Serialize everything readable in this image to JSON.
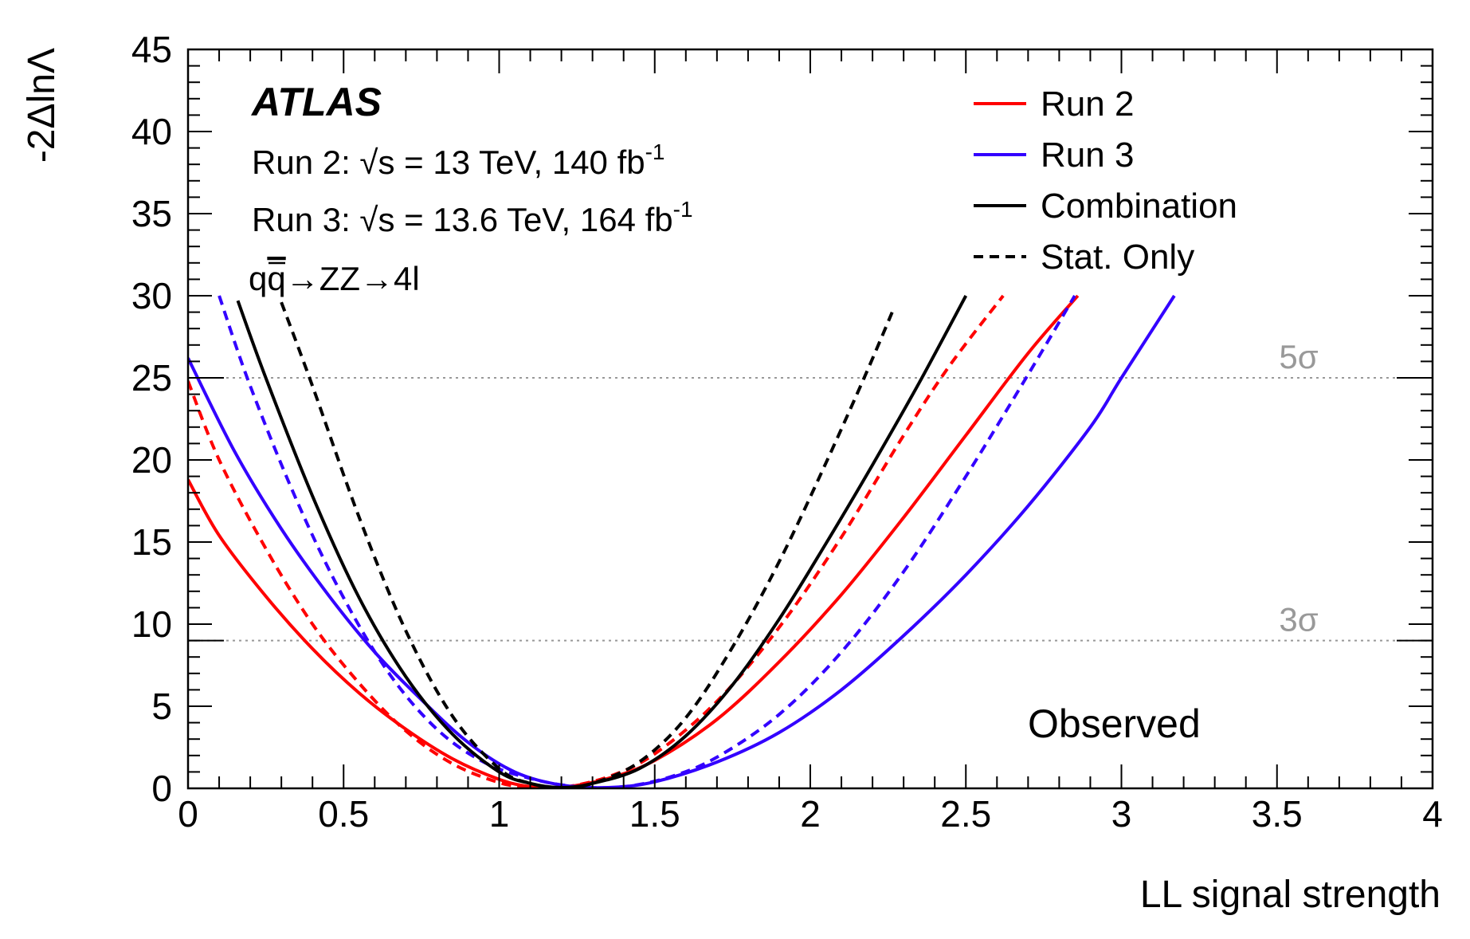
{
  "chart_data": {
    "type": "line",
    "xlabel": "LL signal strength",
    "ylabel": "-2ΔlnΛ",
    "xlim": [
      0,
      4
    ],
    "ylim": [
      0,
      45
    ],
    "x_ticks": [
      "0",
      "0.5",
      "1",
      "1.5",
      "2",
      "2.5",
      "3",
      "3.5",
      "4"
    ],
    "y_ticks": [
      "0",
      "5",
      "10",
      "15",
      "20",
      "25",
      "30",
      "35",
      "40",
      "45"
    ],
    "atlas_label": "ATLAS",
    "info_lines": {
      "run2_prefix": "Run 2: ",
      "run2_suffix": "s = 13 TeV, 140 fb",
      "run3_prefix": "Run 3: ",
      "run3_suffix": "s = 13.6 TeV, 164 fb",
      "lumi_exponent": "-1",
      "process_q": "q",
      "process_qbar": "q",
      "process_rest": "→ZZ→4l"
    },
    "observed_label": "Observed",
    "sigma_lines": [
      {
        "value": 25,
        "label": "5σ"
      },
      {
        "value": 9,
        "label": "3σ"
      }
    ],
    "legend": [
      {
        "label": "Run 2",
        "color": "#ff0000",
        "style": "solid"
      },
      {
        "label": "Run 3",
        "color": "#3300ff",
        "style": "solid"
      },
      {
        "label": "Combination",
        "color": "#000000",
        "style": "solid"
      },
      {
        "label": "Stat. Only",
        "color": "#000000",
        "style": "dashed"
      }
    ],
    "legend_placement": "top-right",
    "series": [
      {
        "color": "#ff0000",
        "style": "solid",
        "x": [
          0,
          0.1,
          0.25,
          0.4,
          0.55,
          0.7,
          0.85,
          1.0,
          1.1,
          1.2,
          1.35,
          1.5,
          1.7,
          1.9,
          2.1,
          2.3,
          2.5,
          2.7,
          2.86
        ],
        "y": [
          18.8,
          15.4,
          11.7,
          8.5,
          5.8,
          3.6,
          1.8,
          0.55,
          0.1,
          0.05,
          0.6,
          1.7,
          4.2,
          7.7,
          11.8,
          16.5,
          21.5,
          26.5,
          30
        ]
      },
      {
        "color": "#ff0000",
        "style": "dashed",
        "x": [
          0,
          0.1,
          0.25,
          0.4,
          0.55,
          0.7,
          0.85,
          1.0,
          1.1,
          1.2,
          1.35,
          1.5,
          1.7,
          1.9,
          2.1,
          2.3,
          2.45,
          2.62
        ],
        "y": [
          24.8,
          20.0,
          14.6,
          10.0,
          6.4,
          3.5,
          1.5,
          0.35,
          0.05,
          0.05,
          0.7,
          2.1,
          5.3,
          9.8,
          15.3,
          21.5,
          25.8,
          30
        ]
      },
      {
        "color": "#3300ff",
        "style": "solid",
        "x": [
          0,
          0.15,
          0.3,
          0.45,
          0.6,
          0.75,
          0.9,
          1.05,
          1.2,
          1.35,
          1.5,
          1.7,
          1.9,
          2.1,
          2.3,
          2.5,
          2.7,
          2.9,
          3.0,
          3.17
        ],
        "y": [
          26.2,
          20.5,
          15.8,
          11.8,
          8.3,
          5.4,
          2.8,
          1.0,
          0.2,
          0.05,
          0.4,
          1.6,
          3.4,
          6.0,
          9.3,
          13.0,
          17.2,
          22.0,
          25.0,
          30
        ]
      },
      {
        "color": "#3300ff",
        "style": "dashed",
        "x": [
          0.1,
          0.2,
          0.35,
          0.5,
          0.65,
          0.8,
          0.95,
          1.1,
          1.25,
          1.4,
          1.55,
          1.7,
          1.9,
          2.1,
          2.3,
          2.5,
          2.7,
          2.85
        ],
        "y": [
          30,
          24.5,
          17.5,
          11.6,
          6.9,
          3.6,
          1.6,
          0.6,
          0.1,
          0.1,
          0.7,
          1.9,
          4.5,
          8.3,
          13.2,
          19.0,
          25.2,
          30
        ]
      },
      {
        "color": "#000000",
        "style": "solid",
        "x": [
          0.16,
          0.25,
          0.4,
          0.55,
          0.7,
          0.85,
          1.0,
          1.1,
          1.2,
          1.3,
          1.45,
          1.6,
          1.75,
          1.9,
          2.05,
          2.2,
          2.35,
          2.5
        ],
        "y": [
          29.7,
          25.0,
          17.8,
          11.6,
          6.8,
          3.3,
          1.0,
          0.3,
          0.05,
          0.3,
          1.2,
          3.2,
          6.3,
          10.3,
          14.9,
          19.7,
          24.7,
          30
        ]
      },
      {
        "color": "#000000",
        "style": "dashed",
        "x": [
          0.3,
          0.4,
          0.55,
          0.7,
          0.85,
          1.0,
          1.1,
          1.2,
          1.3,
          1.45,
          1.6,
          1.75,
          1.9,
          2.05,
          2.18,
          2.27
        ],
        "y": [
          29.6,
          24.5,
          16.5,
          9.6,
          4.4,
          1.2,
          0.3,
          0.05,
          0.3,
          1.6,
          4.3,
          8.6,
          13.8,
          19.8,
          25.3,
          29.3
        ]
      }
    ]
  }
}
